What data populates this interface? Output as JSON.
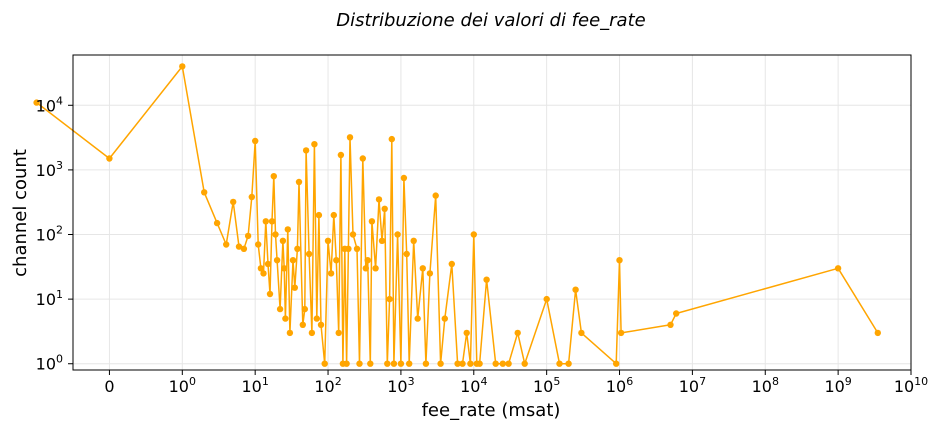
{
  "chart_data": {
    "type": "line",
    "title": "Distribuzione dei valori di fee_rate",
    "xlabel": "fee_rate (msat)",
    "ylabel": "channel count",
    "x_scale": "symlog",
    "y_scale": "log",
    "xlim": [
      -0.5,
      10000000000
    ],
    "ylim": [
      0.8,
      60000
    ],
    "grid": true,
    "line_color": "#ffa500",
    "x_ticks": [
      {
        "value": 0,
        "base": "0",
        "exp": ""
      },
      {
        "value": 1,
        "base": "10",
        "exp": "0"
      },
      {
        "value": 10,
        "base": "10",
        "exp": "1"
      },
      {
        "value": 100,
        "base": "10",
        "exp": "2"
      },
      {
        "value": 1000,
        "base": "10",
        "exp": "3"
      },
      {
        "value": 10000,
        "base": "10",
        "exp": "4"
      },
      {
        "value": 100000,
        "base": "10",
        "exp": "5"
      },
      {
        "value": 1000000,
        "base": "10",
        "exp": "6"
      },
      {
        "value": 10000000,
        "base": "10",
        "exp": "7"
      },
      {
        "value": 100000000,
        "base": "10",
        "exp": "8"
      },
      {
        "value": 1000000000,
        "base": "10",
        "exp": "9"
      },
      {
        "value": 10000000000,
        "base": "10",
        "exp": "10"
      }
    ],
    "y_ticks": [
      {
        "value": 1,
        "base": "10",
        "exp": "0"
      },
      {
        "value": 10,
        "base": "10",
        "exp": "1"
      },
      {
        "value": 100,
        "base": "10",
        "exp": "2"
      },
      {
        "value": 1000,
        "base": "10",
        "exp": "3"
      },
      {
        "value": 10000,
        "base": "10",
        "exp": "4"
      }
    ],
    "series": [
      {
        "x": [
          -1,
          0,
          1,
          2,
          3,
          4,
          5,
          6,
          7,
          8,
          9,
          10,
          11,
          12,
          13,
          14,
          15,
          16,
          17,
          18,
          19,
          20,
          22,
          24,
          25,
          26,
          28,
          30,
          33,
          35,
          38,
          40,
          45,
          48,
          50,
          55,
          60,
          65,
          70,
          75,
          80,
          90,
          100,
          110,
          120,
          130,
          140,
          150,
          160,
          170,
          180,
          190,
          200,
          220,
          250,
          270,
          300,
          330,
          350,
          380,
          400,
          450,
          500,
          550,
          600,
          650,
          700,
          750,
          800,
          900,
          1000,
          1100,
          1200,
          1300,
          1500,
          1700,
          2000,
          2200,
          2500,
          3000,
          3500,
          4000,
          5000,
          6000,
          7000,
          8000,
          9000,
          10000,
          11000,
          12000,
          15000,
          20000,
          25000,
          30000,
          40000,
          50000,
          100000,
          150000,
          200000,
          250000,
          300000,
          900000,
          1000000,
          1050000,
          5000000,
          6000000,
          1000000000,
          3500000000
        ],
        "y": [
          11000,
          1500,
          40000,
          450,
          150,
          70,
          320,
          65,
          60,
          95,
          380,
          2800,
          70,
          30,
          25,
          160,
          35,
          12,
          160,
          800,
          100,
          40,
          7,
          80,
          30,
          5,
          120,
          3,
          40,
          15,
          60,
          650,
          4,
          7,
          2000,
          50,
          3,
          2500,
          5,
          200,
          4,
          1,
          80,
          25,
          200,
          40,
          3,
          1700,
          1,
          60,
          1,
          60,
          3200,
          100,
          60,
          1,
          1500,
          30,
          40,
          1,
          160,
          30,
          350,
          80,
          250,
          1,
          10,
          3000,
          1,
          100,
          1,
          750,
          50,
          1,
          80,
          5,
          30,
          1,
          25,
          400,
          1,
          5,
          35,
          1,
          1,
          3,
          1,
          100,
          1,
          1,
          20,
          1,
          1,
          1,
          3,
          1,
          10,
          1,
          1,
          14,
          3,
          1,
          40,
          3,
          4,
          6,
          30,
          3
        ]
      }
    ]
  }
}
